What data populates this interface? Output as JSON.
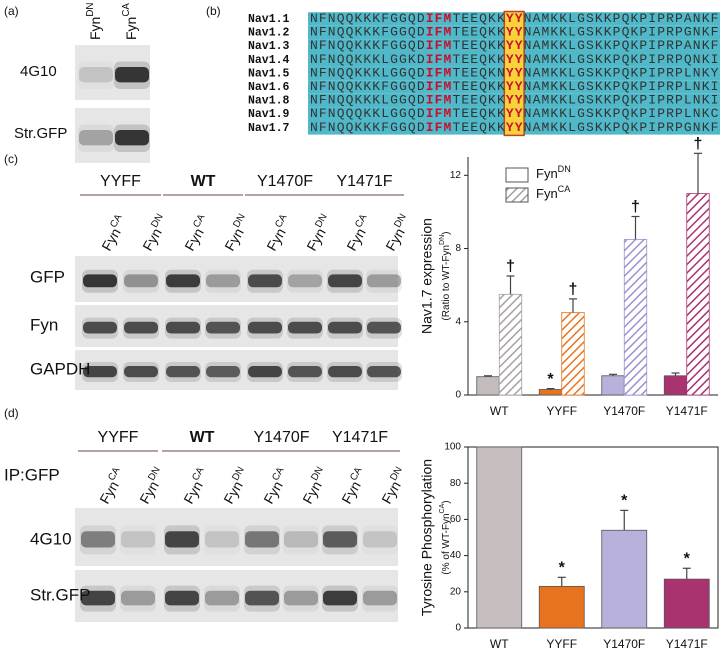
{
  "panel_a": {
    "label": "(a)",
    "lanes": [
      {
        "base": "Fyn",
        "sup": "DN"
      },
      {
        "base": "Fyn",
        "sup": "CA"
      }
    ],
    "rows": [
      "4G10",
      "Str.GFP"
    ]
  },
  "panel_b": {
    "label": "(b)",
    "rows": [
      {
        "name": "Nav1.1",
        "segments": [
          "NFNQQKKKFGGQD",
          "IFM",
          "TEEQKK",
          "YY",
          "NAMKKLGSKKPQKPIPRPANKF"
        ]
      },
      {
        "name": "Nav1.2",
        "segments": [
          "NFNQQKKKFGGQD",
          "IFM",
          "TEEQKK",
          "YY",
          "NAMKKLGSKKPQKPIPRPGNKF"
        ]
      },
      {
        "name": "Nav1.3",
        "segments": [
          "NFNQQKKKFGGQD",
          "IFM",
          "TEEQKK",
          "YY",
          "NAMKKLGSKKPQKPIPRPANKF"
        ]
      },
      {
        "name": "Nav1.4",
        "segments": [
          "NFNQQKKKLGGKD",
          "IFM",
          "TEEQKK",
          "YY",
          "NAMKKLGSKKPQKPIPRPQNKI"
        ]
      },
      {
        "name": "Nav1.5",
        "segments": [
          "NFNQQKKKLGGQD",
          "IFM",
          "TEEQKN",
          "YY",
          "NAMKKLGSKKPQKPIPRPLNKY"
        ]
      },
      {
        "name": "Nav1.6",
        "segments": [
          "NFNQQKKKFGGQD",
          "IFM",
          "TEEQKK",
          "YY",
          "NAMKKLGSKKPQKPIPRPLNKI"
        ]
      },
      {
        "name": "Nav1.8",
        "segments": [
          "NFNQQKKKLGGQD",
          "IFM",
          "TEEQKK",
          "YY",
          "NAMKKLGSKKPQKPIPRPLNKI"
        ]
      },
      {
        "name": "Nav1.9",
        "segments": [
          "NFNQQQKKLGGQD",
          "IFM",
          "TEEQKK",
          "YY",
          "NAMKKLGSKKPQKPIPRPLNKC"
        ]
      },
      {
        "name": "Nav1.7",
        "color": "#d0283c",
        "segments": [
          "NFNQQKKKFGGQD",
          "IFM",
          "TEEQKK",
          "YY",
          "NAMKKLGSKKPQKPIPRPGNKF"
        ]
      }
    ]
  },
  "panel_c": {
    "label": "(c)",
    "groups": [
      {
        "name": "YYFF"
      },
      {
        "name": "WT",
        "color": "#b5123a"
      },
      {
        "name": "Y1470F"
      },
      {
        "name": "Y1471F"
      }
    ],
    "lanes": [
      {
        "base": "Fyn",
        "sup": "CA"
      },
      {
        "base": "Fyn",
        "sup": "DN"
      },
      {
        "base": "Fyn",
        "sup": "CA"
      },
      {
        "base": "Fyn",
        "sup": "DN"
      },
      {
        "base": "Fyn",
        "sup": "CA"
      },
      {
        "base": "Fyn",
        "sup": "DN"
      },
      {
        "base": "Fyn",
        "sup": "CA"
      },
      {
        "base": "Fyn",
        "sup": "DN"
      }
    ],
    "rows": [
      "GFP",
      "Fyn",
      "GAPDH"
    ]
  },
  "panel_d": {
    "label": "(d)",
    "tag": "IP:GFP",
    "groups": [
      {
        "name": "YYFF"
      },
      {
        "name": "WT",
        "color": "#b5123a"
      },
      {
        "name": "Y1470F"
      },
      {
        "name": "Y1471F"
      }
    ],
    "lanes": [
      {
        "base": "Fyn",
        "sup": "CA"
      },
      {
        "base": "Fyn",
        "sup": "DN"
      },
      {
        "base": "Fyn",
        "sup": "CA"
      },
      {
        "base": "Fyn",
        "sup": "DN"
      },
      {
        "base": "Fyn",
        "sup": "CA"
      },
      {
        "base": "Fyn",
        "sup": "DN"
      },
      {
        "base": "Fyn",
        "sup": "CA"
      },
      {
        "base": "Fyn",
        "sup": "DN"
      }
    ],
    "rows": [
      "4G10",
      "Str.GFP"
    ]
  },
  "chart_data": [
    {
      "type": "bar",
      "y_label": "Nav1.7 expression",
      "y_sublabel": {
        "text": "(Ratio to WT-Fyn",
        "sup": "DN",
        "close": ")"
      },
      "categories": [
        "WT",
        "YYFF",
        "Y1470F",
        "Y1471F"
      ],
      "series": [
        {
          "name": "Fyn",
          "name_sup": "DN",
          "hatch": false,
          "colors": [
            "#c4bcbc",
            "#e8731f",
            "#b7b1dc",
            "#a8336e"
          ],
          "values": [
            1,
            0.3,
            1.05,
            1.05
          ],
          "errors": [
            0.05,
            0.05,
            0.08,
            0.15
          ],
          "markers": [
            null,
            "*",
            null,
            null
          ]
        },
        {
          "name": "Fyn",
          "name_sup": "CA",
          "hatch": true,
          "colors": [
            "#a7a0a0",
            "#e8731f",
            "#9a92cf",
            "#a8336e"
          ],
          "values": [
            5.5,
            4.5,
            8.5,
            11
          ],
          "errors": [
            1,
            0.75,
            1.25,
            2.2
          ],
          "markers": [
            "†",
            "†",
            "†",
            "†"
          ]
        }
      ],
      "legend": "top-left",
      "ylim": [
        0,
        13
      ],
      "yticks": [
        0,
        4,
        8,
        12
      ]
    },
    {
      "type": "bar",
      "y_label": "Tyrosine Phosphorylation",
      "y_sublabel": {
        "text": "(% of WT-Fyn",
        "sup": "CA",
        "close": ")"
      },
      "categories": [
        "WT",
        "YYFF",
        "Y1470F",
        "Y1471F"
      ],
      "series": [
        {
          "hatch": false,
          "colors": [
            "#c7bfbf",
            "#e8731f",
            "#b7b1dc",
            "#a8336e"
          ],
          "values": [
            100,
            23,
            54,
            27
          ],
          "errors": [
            null,
            5,
            11,
            6
          ],
          "markers": [
            null,
            "*",
            "*",
            "*"
          ]
        }
      ],
      "frame": true,
      "ylim": [
        0,
        100
      ],
      "yticks": [
        0,
        20,
        40,
        60,
        80,
        100
      ]
    }
  ]
}
